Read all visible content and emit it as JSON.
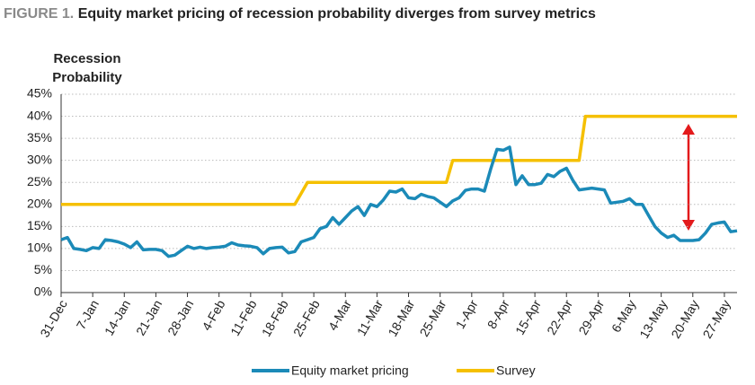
{
  "chart_data": {
    "type": "line",
    "figure_label": "FIGURE 1.",
    "title": "Equity market pricing of recession probability diverges from survey metrics",
    "ylabel": [
      "Recession",
      "Probability"
    ],
    "categories": [
      "31-Dec",
      null,
      null,
      null,
      null,
      "7-Jan",
      null,
      null,
      null,
      null,
      "14-Jan",
      null,
      null,
      null,
      null,
      "21-Jan",
      null,
      null,
      null,
      null,
      "28-Jan",
      null,
      null,
      null,
      null,
      "4-Feb",
      null,
      null,
      null,
      null,
      "11-Feb",
      null,
      null,
      null,
      null,
      "18-Feb",
      null,
      null,
      null,
      null,
      "25-Feb",
      null,
      null,
      null,
      null,
      "4-Mar",
      null,
      null,
      null,
      null,
      "11-Mar",
      null,
      null,
      null,
      null,
      "18-Mar",
      null,
      null,
      null,
      null,
      "25-Mar",
      null,
      null,
      null,
      null,
      "1-Apr",
      null,
      null,
      null,
      null,
      "8-Apr",
      null,
      null,
      null,
      null,
      "15-Apr",
      null,
      null,
      null,
      null,
      "22-Apr",
      null,
      null,
      null,
      null,
      "29-Apr",
      null,
      null,
      null,
      null,
      "6-May",
      null,
      null,
      null,
      null,
      "13-May",
      null,
      null,
      null,
      null,
      "20-May",
      null,
      null,
      null,
      null,
      "27-May",
      null,
      null
    ],
    "series": [
      {
        "name": "Equity market pricing",
        "color": "#1b8ab8",
        "values": [
          12,
          12.5,
          10,
          9.8,
          9.5,
          10.2,
          10,
          12,
          11.8,
          11.5,
          11,
          10.2,
          11.5,
          9.7,
          9.8,
          9.8,
          9.5,
          8.2,
          8.5,
          9.5,
          10.5,
          10,
          10.3,
          10,
          10.2,
          10.3,
          10.5,
          11.3,
          10.8,
          10.6,
          10.5,
          10.2,
          8.8,
          10,
          10.2,
          10.3,
          9,
          9.3,
          11.5,
          12,
          12.5,
          14.5,
          15,
          17,
          15.5,
          17,
          18.5,
          19.5,
          17.5,
          20,
          19.5,
          21,
          23,
          22.8,
          23.5,
          21.5,
          21.3,
          22.3,
          21.8,
          21.5,
          20.5,
          19.5,
          20.8,
          21.5,
          23.2,
          23.5,
          23.5,
          23,
          28,
          32.5,
          32.3,
          33,
          24.5,
          26.5,
          24.5,
          24.5,
          24.8,
          26.8,
          26.3,
          27.5,
          28.2,
          25.5,
          23.3,
          23.5,
          23.7,
          23.5,
          23.3,
          20.3,
          20.5,
          20.7,
          21.3,
          20,
          20,
          17.5,
          15,
          13.5,
          12.5,
          13,
          11.8,
          11.8,
          11.8,
          12,
          13.5,
          15.5,
          15.8,
          16,
          13.8,
          14
        ]
      },
      {
        "name": "Survey",
        "color": "#f5c000",
        "values": [
          20,
          20,
          20,
          20,
          20,
          20,
          20,
          20,
          20,
          20,
          20,
          20,
          20,
          20,
          20,
          20,
          20,
          20,
          20,
          20,
          20,
          20,
          20,
          20,
          20,
          20,
          20,
          20,
          20,
          20,
          20,
          20,
          20,
          20,
          20,
          20,
          20,
          20,
          22.5,
          25,
          25,
          25,
          25,
          25,
          25,
          25,
          25,
          25,
          25,
          25,
          25,
          25,
          25,
          25,
          25,
          25,
          25,
          25,
          25,
          25,
          25,
          25,
          30,
          30,
          30,
          30,
          30,
          30,
          30,
          30,
          30,
          30,
          30,
          30,
          30,
          30,
          30,
          30,
          30,
          30,
          30,
          30,
          30,
          40,
          40,
          40,
          40,
          40,
          40,
          40,
          40,
          40,
          40,
          40,
          40,
          40,
          40,
          40,
          40,
          40,
          40,
          40,
          40,
          40,
          40,
          40,
          40,
          40
        ]
      }
    ],
    "ylim": [
      0,
      45
    ],
    "yticks": [
      {
        "value": 0,
        "label": "0%"
      },
      {
        "value": 5,
        "label": "5%"
      },
      {
        "value": 10,
        "label": "10%"
      },
      {
        "value": 15,
        "label": "15%"
      },
      {
        "value": 20,
        "label": "20%"
      },
      {
        "value": 25,
        "label": "25%"
      },
      {
        "value": 30,
        "label": "30%"
      },
      {
        "value": 35,
        "label": "35%"
      },
      {
        "value": 40,
        "label": "40%"
      },
      {
        "value": 45,
        "label": "45%"
      }
    ],
    "grid": true
  }
}
